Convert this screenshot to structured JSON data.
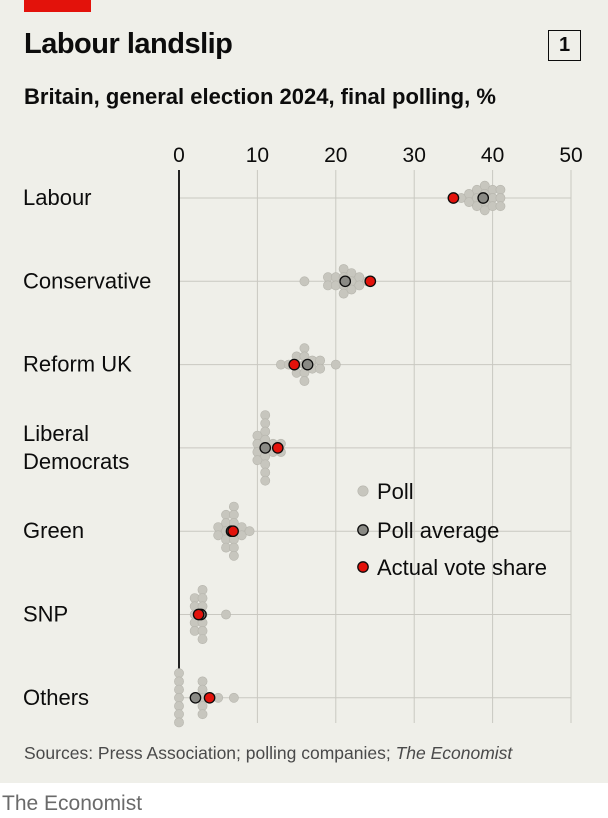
{
  "header": {
    "title": "Labour landslip",
    "chart_number": "1",
    "subtitle": "Britain, general election 2024, final polling, %"
  },
  "colors": {
    "accent": "#e3120b",
    "poll": "#c7c6be",
    "poll_stroke": "#b6b5ad",
    "average": "#8a8a85",
    "actual": "#e3120b",
    "panel_bg": "#efefe9"
  },
  "chart_data": {
    "type": "scatter",
    "title": "Labour landslip",
    "subtitle": "Britain, general election 2024, final polling, %",
    "x_ticks": [
      0,
      10,
      20,
      30,
      40,
      50
    ],
    "xlim": [
      0,
      50
    ],
    "grid": true,
    "legend_position": "right",
    "legend": [
      {
        "key": "poll",
        "label": "Poll"
      },
      {
        "key": "average",
        "label": "Poll average"
      },
      {
        "key": "actual",
        "label": "Actual vote share"
      }
    ],
    "categories": [
      {
        "label": [
          "Labour"
        ],
        "average": 38.8,
        "actual": 35.0,
        "polls": [
          36,
          37,
          37,
          38,
          38,
          38,
          39,
          39,
          39,
          39,
          40,
          40,
          40,
          41,
          41,
          41
        ]
      },
      {
        "label": [
          "Conservative"
        ],
        "average": 21.2,
        "actual": 24.4,
        "polls": [
          16,
          19,
          19,
          20,
          20,
          21,
          21,
          21,
          21,
          22,
          22,
          22,
          23,
          23,
          24
        ]
      },
      {
        "label": [
          "Reform UK"
        ],
        "average": 16.4,
        "actual": 14.7,
        "polls": [
          13,
          14,
          15,
          15,
          15,
          16,
          16,
          16,
          16,
          16,
          17,
          17,
          18,
          18,
          20
        ]
      },
      {
        "label": [
          "Liberal",
          "Democrats"
        ],
        "average": 11.0,
        "actual": 12.6,
        "polls": [
          10,
          10,
          10,
          10,
          11,
          11,
          11,
          11,
          11,
          11,
          11,
          11,
          11,
          12,
          12,
          13,
          13
        ]
      },
      {
        "label": [
          "Green"
        ],
        "average": 6.7,
        "actual": 6.9,
        "polls": [
          5,
          5,
          6,
          6,
          6,
          6,
          6,
          7,
          7,
          7,
          7,
          7,
          7,
          7,
          8,
          8,
          9
        ]
      },
      {
        "label": [
          "SNP"
        ],
        "average": 2.8,
        "actual": 2.5,
        "polls": [
          2,
          2,
          2,
          2,
          2,
          3,
          3,
          3,
          3,
          3,
          3,
          3,
          6
        ]
      },
      {
        "label": [
          "Others"
        ],
        "average": 2.1,
        "actual": 3.9,
        "polls": [
          0,
          0,
          0,
          0,
          0,
          0,
          0,
          3,
          3,
          3,
          3,
          3,
          5,
          7
        ]
      }
    ]
  },
  "footer": {
    "source_prefix": "Sources: Press Association; polling companies; ",
    "source_italic": "The Economist",
    "credit": "The Economist"
  }
}
